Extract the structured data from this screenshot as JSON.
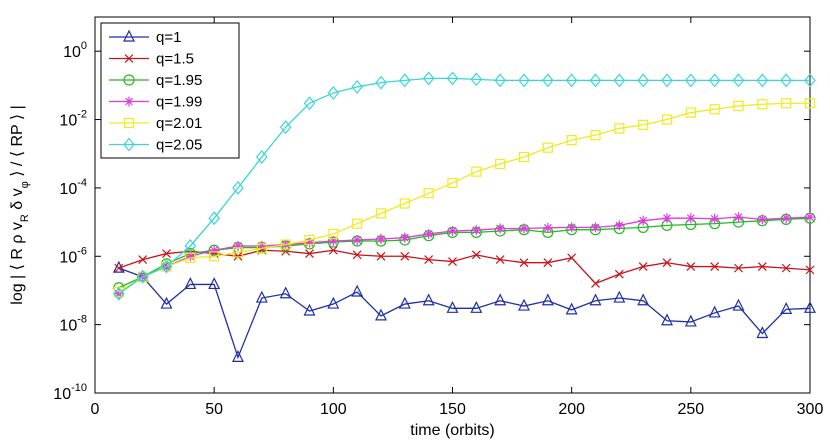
{
  "chart_data": {
    "type": "line",
    "xlabel": "time (orbits)",
    "ylabel": "log | ⟨ R ρ v_R δ v_φ ⟩ / ⟨ RP ⟩ |",
    "xlim": [
      0,
      300
    ],
    "ylim": [
      1e-10,
      10
    ],
    "y_scale": "log",
    "x_ticks": [
      0,
      50,
      100,
      150,
      200,
      250,
      300
    ],
    "y_ticks": [
      {
        "value": 1e-10,
        "base": "10",
        "exp": "-10"
      },
      {
        "value": 1e-08,
        "base": "10",
        "exp": "-8"
      },
      {
        "value": 1e-06,
        "base": "10",
        "exp": "-6"
      },
      {
        "value": 0.0001,
        "base": "10",
        "exp": "-4"
      },
      {
        "value": 0.01,
        "base": "10",
        "exp": "-2"
      },
      {
        "value": 1,
        "base": "10",
        "exp": "0"
      }
    ],
    "grid": false,
    "legend_position": "top-left",
    "x": [
      10,
      20,
      30,
      40,
      50,
      60,
      70,
      80,
      90,
      100,
      110,
      120,
      130,
      140,
      150,
      160,
      170,
      180,
      190,
      200,
      210,
      220,
      230,
      240,
      250,
      260,
      270,
      280,
      290,
      300
    ],
    "series": [
      {
        "name": "q=1",
        "color": "#1f2fa8",
        "marker": "triangle",
        "values": [
          4.5e-07,
          2.5e-07,
          4e-08,
          1.5e-07,
          1.5e-07,
          1.1e-09,
          6e-08,
          8e-08,
          2.5e-08,
          4e-08,
          9e-08,
          1.8e-08,
          4e-08,
          5e-08,
          3e-08,
          3e-08,
          5e-08,
          3.5e-08,
          5e-08,
          2.7e-08,
          5e-08,
          6e-08,
          5e-08,
          1.3e-08,
          1.2e-08,
          2.2e-08,
          3.5e-08,
          5.5e-09,
          2.8e-08,
          3e-08
        ]
      },
      {
        "name": "q=1.5",
        "color": "#c8141a",
        "marker": "x",
        "values": [
          4.5e-07,
          8e-07,
          1.2e-06,
          1.4e-06,
          1.2e-06,
          1e-06,
          1.5e-06,
          1.4e-06,
          1.2e-06,
          1.5e-06,
          1.1e-06,
          1e-06,
          1e-06,
          8e-07,
          7e-07,
          1.1e-06,
          8e-07,
          6.5e-07,
          6.5e-07,
          9e-07,
          1.6e-07,
          3e-07,
          5e-07,
          6.5e-07,
          5e-07,
          5e-07,
          4.5e-07,
          5e-07,
          4.5e-07,
          4e-07
        ]
      },
      {
        "name": "q=1.95",
        "color": "#22bb22",
        "marker": "circle",
        "values": [
          1.2e-07,
          2.5e-07,
          6e-07,
          1.2e-06,
          1.5e-06,
          1.8e-06,
          1.8e-06,
          2e-06,
          2.3e-06,
          2.6e-06,
          2.8e-06,
          2.8e-06,
          3e-06,
          4e-06,
          5e-06,
          5e-06,
          5.5e-06,
          6e-06,
          5e-06,
          6e-06,
          6e-06,
          6.5e-06,
          7e-06,
          8e-06,
          8.5e-06,
          9e-06,
          1e-05,
          1.1e-05,
          1.2e-05,
          1.3e-05
        ]
      },
      {
        "name": "q=1.99",
        "color": "#e03be0",
        "marker": "star",
        "values": [
          8e-08,
          2.5e-07,
          5e-07,
          1e-06,
          1.5e-06,
          2e-06,
          2e-06,
          2.2e-06,
          2.5e-06,
          2.8e-06,
          3e-06,
          3.2e-06,
          3.5e-06,
          4.5e-06,
          5.5e-06,
          5.8e-06,
          6.5e-06,
          6.5e-06,
          6.8e-06,
          7e-06,
          7e-06,
          8e-06,
          1.1e-05,
          1.3e-05,
          1.3e-05,
          1.25e-05,
          1.4e-05,
          1.2e-05,
          1.3e-05,
          1.4e-05
        ]
      },
      {
        "name": "q=2.01",
        "color": "#f0ea1e",
        "marker": "square",
        "values": [
          9e-08,
          2.5e-07,
          5e-07,
          9e-07,
          1e-06,
          1.3e-06,
          1.7e-06,
          2.2e-06,
          3e-06,
          4.5e-06,
          9e-06,
          1.8e-05,
          3.5e-05,
          7e-05,
          0.00014,
          0.0003,
          0.0005,
          0.0008,
          0.0015,
          0.0025,
          0.0035,
          0.0055,
          0.007,
          0.01,
          0.016,
          0.02,
          0.025,
          0.028,
          0.03,
          0.03
        ]
      },
      {
        "name": "q=2.05",
        "color": "#3ad6d6",
        "marker": "diamond",
        "values": [
          8e-08,
          2.5e-07,
          5e-07,
          2e-06,
          1.3e-05,
          0.0001,
          0.0008,
          0.006,
          0.03,
          0.06,
          0.09,
          0.12,
          0.14,
          0.16,
          0.16,
          0.15,
          0.14,
          0.14,
          0.14,
          0.14,
          0.14,
          0.14,
          0.14,
          0.14,
          0.14,
          0.14,
          0.14,
          0.14,
          0.14,
          0.14
        ]
      }
    ]
  }
}
